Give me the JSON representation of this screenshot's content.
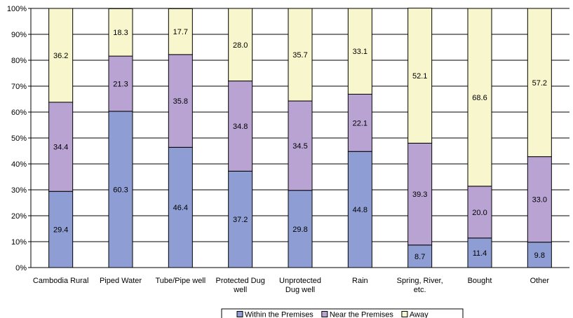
{
  "chart_data": {
    "type": "bar",
    "stacked": true,
    "title": "",
    "xlabel": "",
    "ylabel": "",
    "ylim": [
      0,
      100
    ],
    "y_ticks": [
      "0%",
      "10%",
      "20%",
      "30%",
      "40%",
      "50%",
      "60%",
      "70%",
      "80%",
      "90%",
      "100%"
    ],
    "grid": true,
    "legend_position": "bottom",
    "categories": [
      [
        "Cambodia Rural"
      ],
      [
        "Piped Water"
      ],
      [
        "Tube/Pipe well"
      ],
      [
        "Protected Dug",
        "well"
      ],
      [
        "Unprotected",
        "Dug well"
      ],
      [
        "Rain"
      ],
      [
        "Spring, River,",
        "etc."
      ],
      [
        "Bought"
      ],
      [
        "Other"
      ]
    ],
    "series": [
      {
        "name": "Within the Premises",
        "color": "#8e9ed4",
        "values": [
          29.4,
          60.3,
          46.4,
          37.2,
          29.8,
          44.8,
          8.7,
          11.4,
          9.8
        ],
        "labels": [
          "29.4",
          "60.3",
          "46.4",
          "37.2",
          "29.8",
          "44.8",
          "8.7",
          "11.4",
          "9.8"
        ]
      },
      {
        "name": "Near the Premises",
        "color": "#b9a3d2",
        "values": [
          34.4,
          21.3,
          35.8,
          34.8,
          34.5,
          22.1,
          39.3,
          20.0,
          33.0
        ],
        "labels": [
          "34.4",
          "21.3",
          "35.8",
          "34.8",
          "34.5",
          "22.1",
          "39.3",
          "20.0",
          "33.0"
        ]
      },
      {
        "name": "Away",
        "color": "#f8f6cc",
        "values": [
          36.2,
          18.3,
          17.7,
          28.0,
          35.7,
          33.1,
          52.1,
          68.6,
          57.2
        ],
        "labels": [
          "36.2",
          "18.3",
          "17.7",
          "28.0",
          "35.7",
          "33.1",
          "52.1",
          "68.6",
          "57.2"
        ]
      }
    ]
  }
}
